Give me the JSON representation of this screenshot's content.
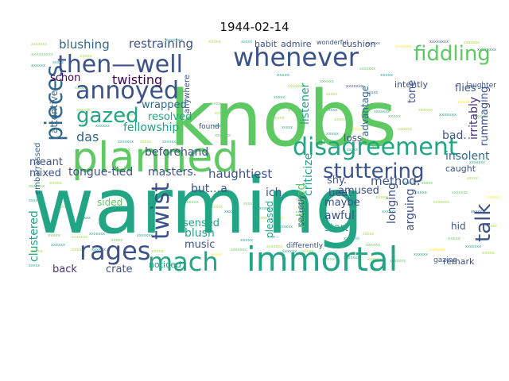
{
  "figure": {
    "title": "1944-02-14"
  },
  "palette": {
    "yellow": "#fde725",
    "lightgreen": "#a0da39",
    "green": "#5ec962",
    "teal": "#21a585",
    "tealblue": "#1f988b",
    "cyan": "#2a788e",
    "blue": "#31688e",
    "indigo": "#3b528b",
    "purple": "#46327e",
    "darkpurple": "#440154"
  },
  "words": {
    "warming": "warming",
    "knobs": "knobs",
    "planned": "planned",
    "immortal": "immortal",
    "disagreement": "disagreement",
    "whenever": "whenever",
    "pieces": "pieces",
    "then_well": "then—well",
    "annoyed": "annoyed",
    "stuttering": "stuttering",
    "mach": "mach",
    "rages": "rages",
    "gazed": "gazed",
    "fiddling": "fiddling",
    "talk": "talk",
    "twist": "twist",
    "twisting": "twisting",
    "restraining": "restraining",
    "blushing": "blushing",
    "schon": "schon",
    "rummaging": "rummaging",
    "flies": "flies",
    "masters": "masters.",
    "haughtiest": "haughtiest",
    "tongue_tied": "tongue-tied",
    "beforehand": "beforehand",
    "fellowship": "fellowship",
    "wrapped": "wrapped",
    "resolved": "resolved",
    "das": "das",
    "attentive": "attentive",
    "meant": "meant",
    "mixed": "mixed",
    "method": "method.",
    "insolent": "insolent",
    "irritably": "irritably",
    "advantage": "advantage",
    "tone": "tone",
    "bad": "bad.",
    "listener": "listener",
    "criticize": "criticize",
    "ich": "ich",
    "amused": "amused",
    "relieved": "relieved",
    "longing": "longing",
    "arguing": "arguing",
    "maybe": "maybe",
    "awful": "awful",
    "start": "start",
    "beat": "beat",
    "shy": "shy.",
    "but_a": "but…a",
    "sided": "sided",
    "sensed": "sensed",
    "blush": "blush",
    "music": "music",
    "crate": "crate",
    "back": "back",
    "clustered": "clustered",
    "pleased": "pleased",
    "hid": "hid",
    "remark": "remark",
    "caught": "caught",
    "noticed": "noticed",
    "loss": "loss",
    "intently": "intently",
    "cushion": "cushion",
    "admire": "admire",
    "habit": "habit",
    "embarrassed": "embarrassed",
    "secretly": "secretly",
    "anywhere": "anywhere",
    "found": "found",
    "laughter": "laughter",
    "differently": "differently",
    "gazing": "gazing",
    "wonderful": "wonderful"
  }
}
